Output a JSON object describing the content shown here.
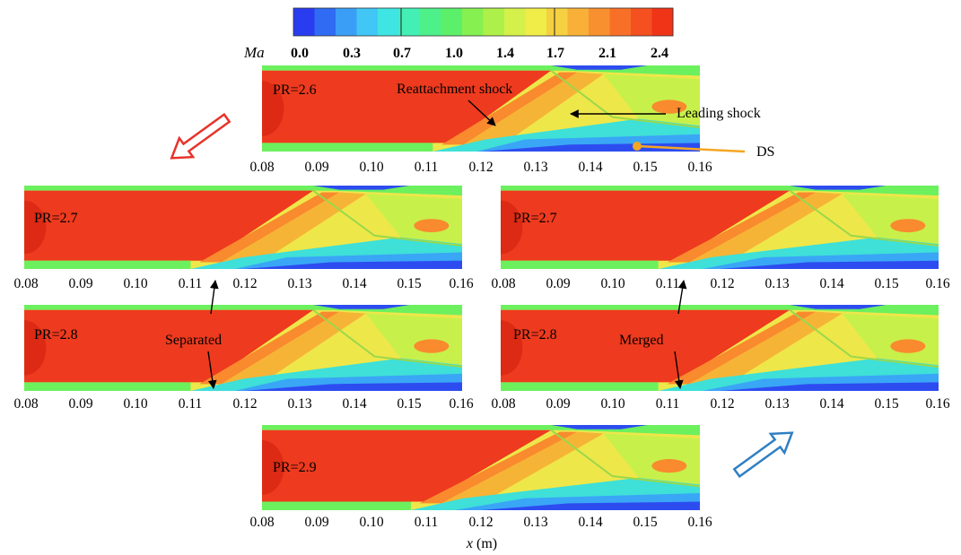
{
  "colorbar": {
    "label": "Ma",
    "ticks": [
      "0.0",
      "0.3",
      "0.7",
      "1.0",
      "1.4",
      "1.7",
      "2.1",
      "2.4"
    ],
    "colors": [
      "#2a3cf0",
      "#2f6cf3",
      "#3a9ef6",
      "#41c6f6",
      "#3fe5e2",
      "#44efb6",
      "#4ef08a",
      "#5cf06a",
      "#86f050",
      "#aef04a",
      "#d4f04a",
      "#f0ec48",
      "#f5d040",
      "#f8b038",
      "#f99030",
      "#f87028",
      "#f45020",
      "#ef3418"
    ]
  },
  "panels": [
    {
      "id": "p26",
      "pr_label": "PR=2.6",
      "ticks": [
        "0.08",
        "0.09",
        "0.10",
        "0.11",
        "0.12",
        "0.13",
        "0.14",
        "0.15",
        "0.16"
      ]
    },
    {
      "id": "p27a",
      "pr_label": "PR=2.7",
      "ticks": [
        "0.08",
        "0.09",
        "0.10",
        "0.11",
        "0.12",
        "0.13",
        "0.14",
        "0.15",
        "0.16"
      ]
    },
    {
      "id": "p28a",
      "pr_label": "PR=2.8",
      "ticks": [
        "0.08",
        "0.09",
        "0.10",
        "0.11",
        "0.12",
        "0.13",
        "0.14",
        "0.15",
        "0.16"
      ]
    },
    {
      "id": "p27b",
      "pr_label": "PR=2.7",
      "ticks": [
        "0.08",
        "0.09",
        "0.10",
        "0.11",
        "0.12",
        "0.13",
        "0.14",
        "0.15",
        "0.16"
      ]
    },
    {
      "id": "p28b",
      "pr_label": "PR=2.8",
      "ticks": [
        "0.08",
        "0.09",
        "0.10",
        "0.11",
        "0.12",
        "0.13",
        "0.14",
        "0.15",
        "0.16"
      ]
    },
    {
      "id": "p29",
      "pr_label": "PR=2.9",
      "ticks": [
        "0.08",
        "0.09",
        "0.10",
        "0.11",
        "0.12",
        "0.13",
        "0.14",
        "0.15",
        "0.16"
      ]
    }
  ],
  "annotations": {
    "reattachment": "Reattachment shock",
    "leading": "Leading shock",
    "ds": "DS",
    "separated": "Separated",
    "merged": "Merged"
  },
  "axis": {
    "x_symbol": "x",
    "x_unit": " (m)"
  },
  "colors": {
    "red_arrow": "#e8322a",
    "blue_arrow": "#2f7fc4",
    "ds_marker": "#f5a623"
  }
}
